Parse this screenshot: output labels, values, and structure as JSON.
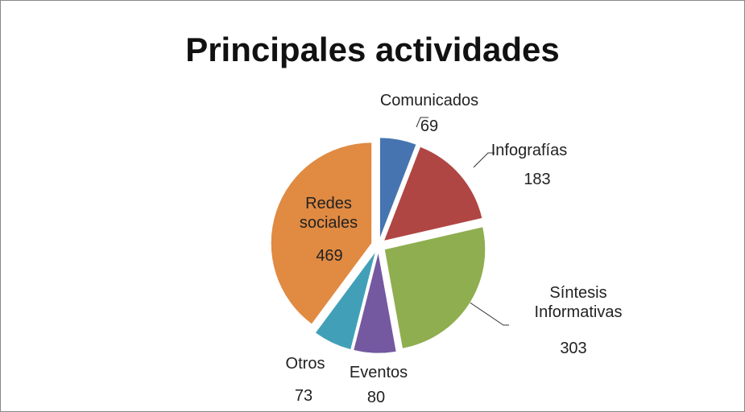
{
  "chart_data": {
    "type": "pie",
    "title": "Principales actividades",
    "categories": [
      "Comunicados",
      "Infografías",
      "Síntesis Informativas",
      "Eventos",
      "Otros",
      "Redes sociales"
    ],
    "values": [
      69,
      183,
      303,
      80,
      73,
      469
    ],
    "colors": [
      "#4674b0",
      "#b04644",
      "#8fae4f",
      "#7458a0",
      "#41a0b8",
      "#e08a42"
    ]
  }
}
